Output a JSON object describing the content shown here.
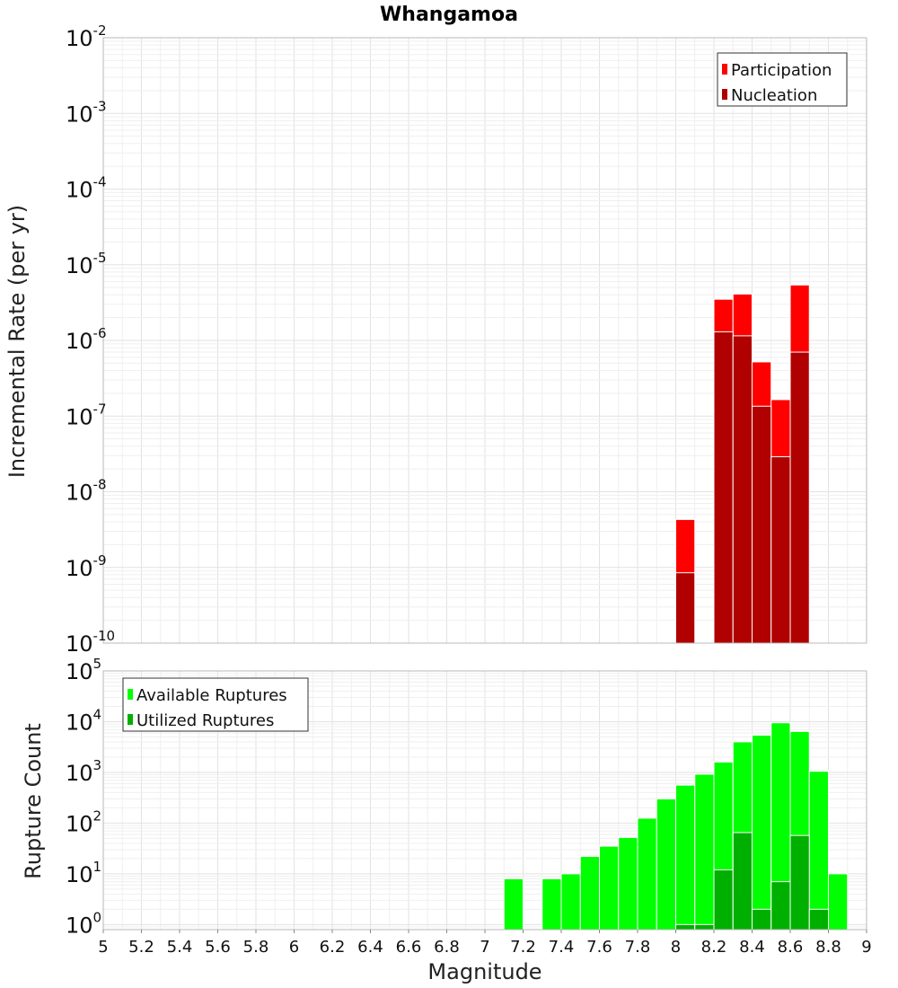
{
  "chart_data": [
    {
      "type": "bar",
      "title": "Whangamoa",
      "ylabel": "Incremental Rate (per yr)",
      "xlabel": "",
      "yscale": "log",
      "ylim_exp": [
        -10,
        -2
      ],
      "xlim": [
        5,
        9
      ],
      "bin_width": 0.1,
      "legend_position": "top-right",
      "series": [
        {
          "name": "Participation",
          "color": "#ff0000",
          "x": [
            8.05,
            8.25,
            8.35,
            8.45,
            8.55,
            8.65
          ],
          "values": [
            4.3e-09,
            3.5e-06,
            4.1e-06,
            5.2e-07,
            1.65e-07,
            5.4e-06
          ]
        },
        {
          "name": "Nucleation",
          "color": "#b00000",
          "x": [
            8.05,
            8.25,
            8.35,
            8.45,
            8.55,
            8.65
          ],
          "values": [
            8.5e-10,
            1.3e-06,
            1.15e-06,
            1.35e-07,
            2.9e-08,
            7e-07
          ]
        }
      ]
    },
    {
      "type": "bar",
      "title": "",
      "ylabel": "Rupture Count",
      "xlabel": "Magnitude",
      "yscale": "log",
      "ylim_exp": [
        -0.1,
        5
      ],
      "xlim": [
        5,
        9
      ],
      "bin_width": 0.1,
      "legend_position": "top-left",
      "x_ticks": [
        "5",
        "5.2",
        "5.4",
        "5.6",
        "5.8",
        "6",
        "6.2",
        "6.4",
        "6.6",
        "6.8",
        "7",
        "7.2",
        "7.4",
        "7.6",
        "7.8",
        "8",
        "8.2",
        "8.4",
        "8.6",
        "8.8",
        "9"
      ],
      "series": [
        {
          "name": "Available Ruptures",
          "color": "#00ff00",
          "x": [
            7.15,
            7.35,
            7.45,
            7.55,
            7.65,
            7.75,
            7.85,
            7.95,
            8.05,
            8.15,
            8.25,
            8.35,
            8.45,
            8.55,
            8.65,
            8.75,
            8.85
          ],
          "values": [
            8,
            8,
            10,
            22,
            35,
            52,
            125,
            300,
            560,
            920,
            1600,
            4000,
            5400,
            9500,
            6400,
            1050,
            10
          ]
        },
        {
          "name": "Utilized Ruptures",
          "color": "#00b000",
          "x": [
            8.05,
            8.15,
            8.25,
            8.35,
            8.45,
            8.55,
            8.65,
            8.75
          ],
          "values": [
            1,
            1,
            12,
            65,
            2,
            7,
            57,
            2
          ]
        }
      ]
    }
  ]
}
